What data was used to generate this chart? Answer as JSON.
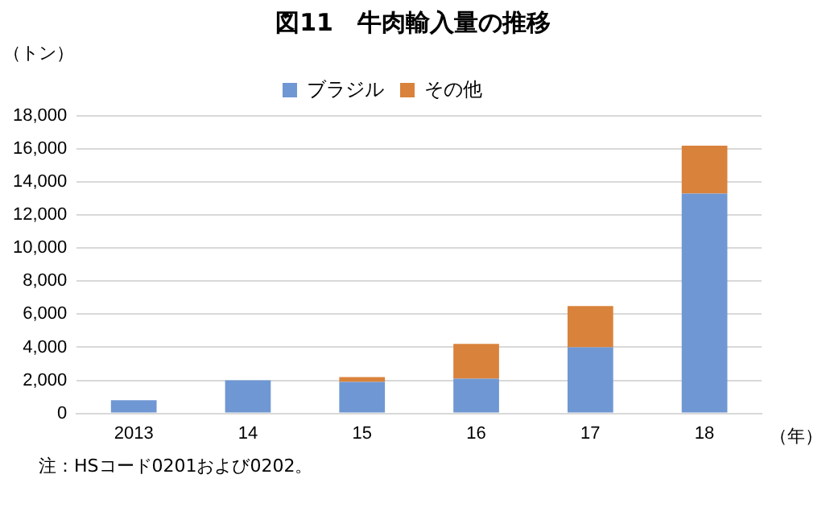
{
  "chart_data": {
    "type": "bar",
    "title": "図11　牛肉輸入量の推移",
    "ylabel": "（トン）",
    "xlabel": "（年）",
    "categories": [
      "2013",
      "14",
      "15",
      "16",
      "17",
      "18"
    ],
    "series": [
      {
        "name": "ブラジル",
        "color": "#6f97d3",
        "values": [
          800,
          2000,
          1900,
          2100,
          4000,
          13300
        ]
      },
      {
        "name": "その他",
        "color": "#d9823b",
        "values": [
          0,
          0,
          300,
          2100,
          2500,
          2900
        ]
      }
    ],
    "stacked": true,
    "ylim": [
      0,
      18000
    ],
    "yticks": [
      0,
      {
        "value": 2000,
        "label": "2,000"
      },
      {
        "value": 4000,
        "label": "4,000"
      },
      {
        "value": 6000,
        "label": "6,000"
      },
      {
        "value": 8000,
        "label": "8,000"
      },
      {
        "value": 10000,
        "label": "10,000"
      },
      {
        "value": 12000,
        "label": "12,000"
      },
      {
        "value": 14000,
        "label": "14,000"
      },
      {
        "value": 16000,
        "label": "16,000"
      },
      {
        "value": 18000,
        "label": "18,000"
      }
    ],
    "grid": "y",
    "legend": "top",
    "annotations": [
      "注：HSコード0201および0202。"
    ]
  }
}
